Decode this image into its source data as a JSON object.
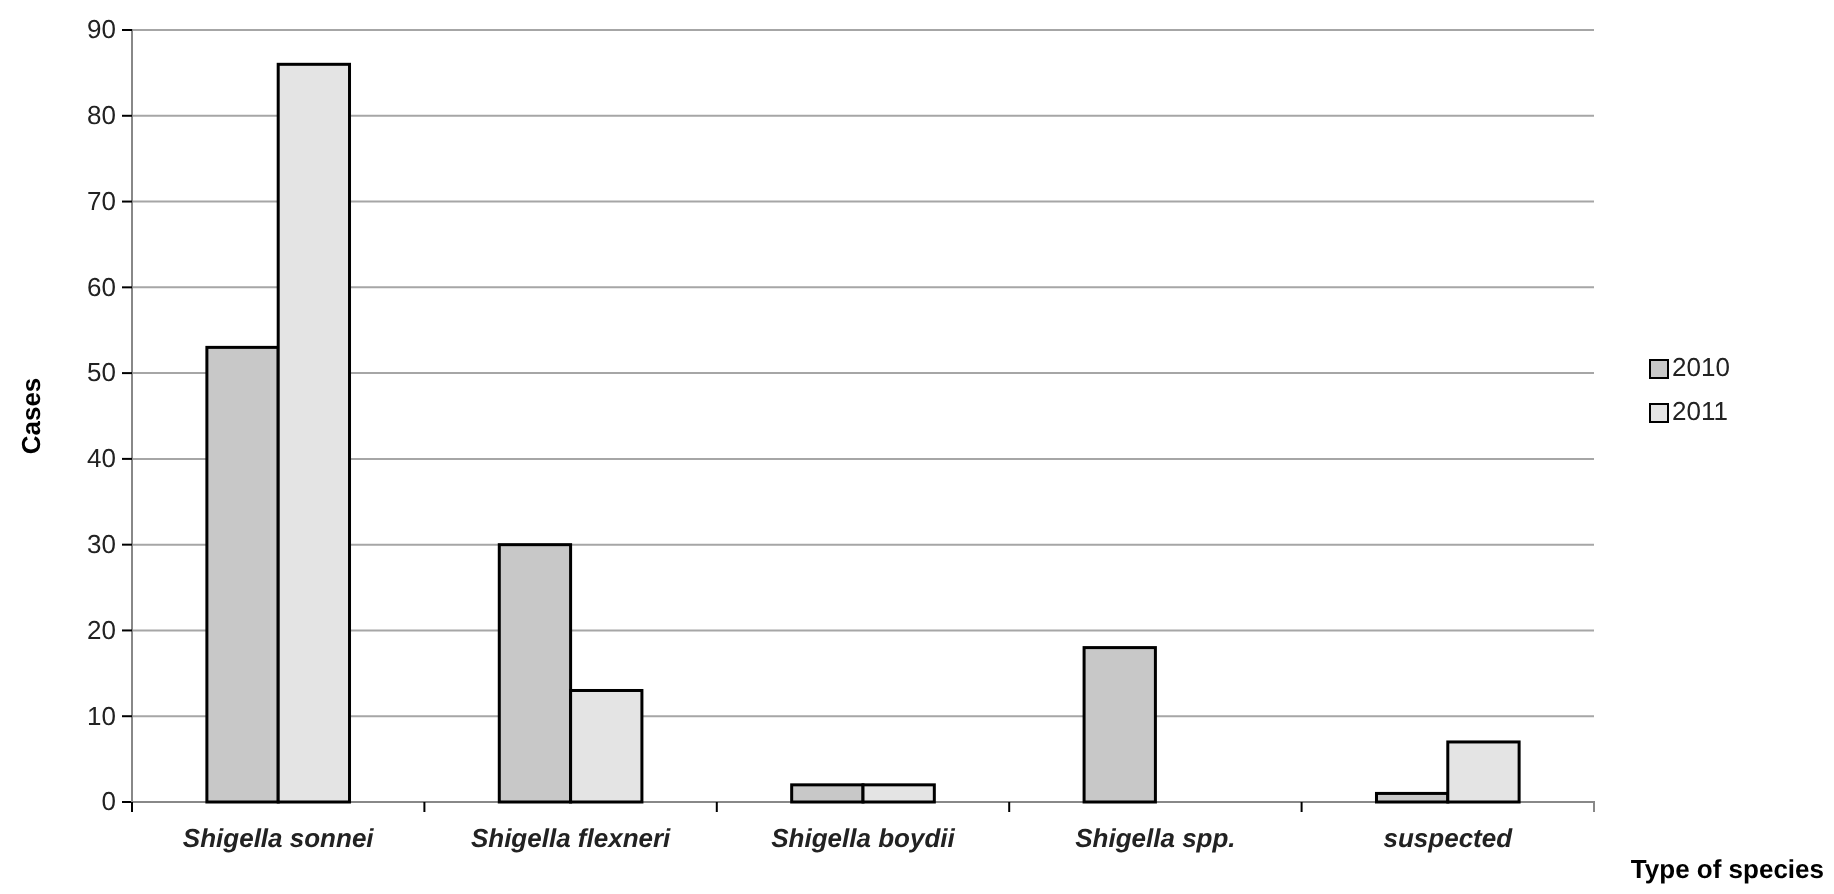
{
  "chart_data": {
    "type": "bar",
    "xlabel": "Type of species",
    "ylabel": "Cases",
    "categories": [
      "Shigella sonnei",
      "Shigella flexneri",
      "Shigella boydii",
      "Shigella spp.",
      "suspected"
    ],
    "series": [
      {
        "name": "2010",
        "color": "#c8c8c8",
        "values": [
          53,
          30,
          2,
          18,
          1
        ]
      },
      {
        "name": "2011",
        "color": "#e4e4e4",
        "values": [
          86,
          13,
          2,
          0,
          7
        ]
      }
    ],
    "ylim": [
      0,
      90
    ],
    "yticks": [
      0,
      10,
      20,
      30,
      40,
      50,
      60,
      70,
      80,
      90
    ],
    "grid": "y",
    "legend": "right"
  }
}
